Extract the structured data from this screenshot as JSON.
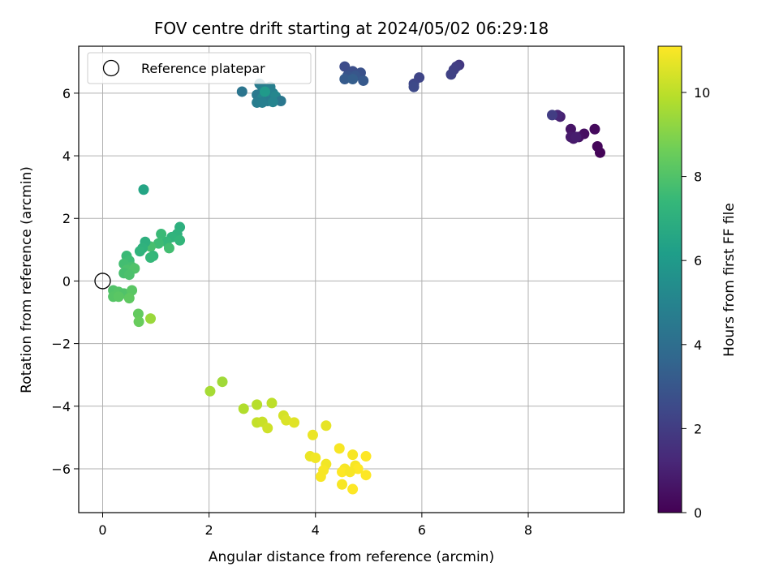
{
  "chart_data": {
    "type": "scatter",
    "title": "FOV centre drift starting at 2024/05/02 06:29:18",
    "xlabel": "Angular distance from reference (arcmin)",
    "ylabel": "Rotation from reference (arcmin)",
    "xlim": [
      -0.45,
      9.8
    ],
    "ylim": [
      -7.4,
      7.5
    ],
    "xticks": [
      0,
      2,
      4,
      6,
      8
    ],
    "yticks": [
      -6,
      -4,
      -2,
      0,
      2,
      4,
      6
    ],
    "grid": true,
    "legend": {
      "position": "top-left",
      "entries": [
        {
          "label": "Reference platepar",
          "marker": "open-circle"
        }
      ]
    },
    "reference_point": {
      "x": 0,
      "y": 0
    },
    "colorbar": {
      "label": "Hours from first FF file",
      "range": [
        0,
        11.1
      ],
      "ticks": [
        0,
        2,
        4,
        6,
        8,
        10
      ],
      "colormap": "viridis",
      "colors": [
        "#440154",
        "#482878",
        "#3e4989",
        "#31688e",
        "#26828e",
        "#1f9e89",
        "#35b779",
        "#6ece58",
        "#b5de2b",
        "#fde725"
      ]
    },
    "points": [
      {
        "x": 9.35,
        "y": 4.1,
        "h": 0.1
      },
      {
        "x": 9.3,
        "y": 4.3,
        "h": 0.2
      },
      {
        "x": 9.25,
        "y": 4.85,
        "h": 0.3
      },
      {
        "x": 9.05,
        "y": 4.7,
        "h": 0.4
      },
      {
        "x": 8.95,
        "y": 4.6,
        "h": 0.5
      },
      {
        "x": 8.8,
        "y": 4.85,
        "h": 0.6
      },
      {
        "x": 8.85,
        "y": 4.55,
        "h": 0.7
      },
      {
        "x": 8.8,
        "y": 4.6,
        "h": 0.8
      },
      {
        "x": 8.9,
        "y": 4.6,
        "h": 0.9
      },
      {
        "x": 8.6,
        "y": 5.25,
        "h": 1.0
      },
      {
        "x": 8.55,
        "y": 5.3,
        "h": 1.2
      },
      {
        "x": 8.45,
        "y": 5.3,
        "h": 2.0
      },
      {
        "x": 6.7,
        "y": 6.9,
        "h": 1.8
      },
      {
        "x": 6.65,
        "y": 6.85,
        "h": 2.0
      },
      {
        "x": 6.6,
        "y": 6.75,
        "h": 2.1
      },
      {
        "x": 6.55,
        "y": 6.6,
        "h": 2.2
      },
      {
        "x": 5.95,
        "y": 6.5,
        "h": 2.3
      },
      {
        "x": 5.85,
        "y": 6.3,
        "h": 2.4
      },
      {
        "x": 5.85,
        "y": 6.2,
        "h": 2.5
      },
      {
        "x": 4.55,
        "y": 6.85,
        "h": 2.6
      },
      {
        "x": 4.7,
        "y": 6.7,
        "h": 2.7
      },
      {
        "x": 4.85,
        "y": 6.65,
        "h": 2.8
      },
      {
        "x": 4.6,
        "y": 6.55,
        "h": 2.9
      },
      {
        "x": 4.75,
        "y": 6.55,
        "h": 3.0
      },
      {
        "x": 4.9,
        "y": 6.4,
        "h": 3.1
      },
      {
        "x": 4.55,
        "y": 6.45,
        "h": 3.2
      },
      {
        "x": 4.7,
        "y": 6.45,
        "h": 3.3
      },
      {
        "x": 2.62,
        "y": 6.05,
        "h": 4.3
      },
      {
        "x": 2.9,
        "y": 5.95,
        "h": 4.5
      },
      {
        "x": 2.95,
        "y": 6.3,
        "h": 4.6
      },
      {
        "x": 3.0,
        "y": 6.2,
        "h": 4.7
      },
      {
        "x": 3.15,
        "y": 6.2,
        "h": 4.8
      },
      {
        "x": 3.2,
        "y": 6.0,
        "h": 4.9
      },
      {
        "x": 3.0,
        "y": 5.85,
        "h": 5.0
      },
      {
        "x": 3.25,
        "y": 5.9,
        "h": 5.1
      },
      {
        "x": 3.35,
        "y": 5.75,
        "h": 4.4
      },
      {
        "x": 3.1,
        "y": 5.75,
        "h": 4.6
      },
      {
        "x": 2.9,
        "y": 5.7,
        "h": 4.7
      },
      {
        "x": 3.0,
        "y": 5.7,
        "h": 4.8
      },
      {
        "x": 3.2,
        "y": 5.72,
        "h": 5.0
      },
      {
        "x": 3.05,
        "y": 6.05,
        "h": 6.0
      },
      {
        "x": 0.77,
        "y": 2.92,
        "h": 6.5
      },
      {
        "x": 1.45,
        "y": 1.72,
        "h": 7.0
      },
      {
        "x": 1.4,
        "y": 1.5,
        "h": 7.1
      },
      {
        "x": 1.3,
        "y": 1.4,
        "h": 7.2
      },
      {
        "x": 1.45,
        "y": 1.3,
        "h": 7.3
      },
      {
        "x": 1.2,
        "y": 1.25,
        "h": 7.4
      },
      {
        "x": 1.1,
        "y": 1.5,
        "h": 7.5
      },
      {
        "x": 1.05,
        "y": 1.2,
        "h": 7.6
      },
      {
        "x": 1.25,
        "y": 1.05,
        "h": 7.7
      },
      {
        "x": 0.9,
        "y": 1.1,
        "h": 7.8
      },
      {
        "x": 0.8,
        "y": 1.25,
        "h": 7.0
      },
      {
        "x": 0.75,
        "y": 1.05,
        "h": 7.1
      },
      {
        "x": 0.7,
        "y": 0.95,
        "h": 7.2
      },
      {
        "x": 0.95,
        "y": 0.8,
        "h": 7.3
      },
      {
        "x": 0.9,
        "y": 0.75,
        "h": 7.4
      },
      {
        "x": 0.45,
        "y": 0.8,
        "h": 7.5
      },
      {
        "x": 0.5,
        "y": 0.65,
        "h": 7.6
      },
      {
        "x": 0.4,
        "y": 0.55,
        "h": 7.7
      },
      {
        "x": 0.55,
        "y": 0.45,
        "h": 7.8
      },
      {
        "x": 0.45,
        "y": 0.35,
        "h": 7.9
      },
      {
        "x": 0.6,
        "y": 0.4,
        "h": 8.0
      },
      {
        "x": 0.4,
        "y": 0.25,
        "h": 7.8
      },
      {
        "x": 0.5,
        "y": 0.2,
        "h": 7.9
      },
      {
        "x": 0.2,
        "y": -0.3,
        "h": 8.0
      },
      {
        "x": 0.3,
        "y": -0.35,
        "h": 8.1
      },
      {
        "x": 0.4,
        "y": -0.4,
        "h": 8.0
      },
      {
        "x": 0.55,
        "y": -0.3,
        "h": 8.2
      },
      {
        "x": 0.2,
        "y": -0.5,
        "h": 8.1
      },
      {
        "x": 0.3,
        "y": -0.5,
        "h": 8.2
      },
      {
        "x": 0.5,
        "y": -0.55,
        "h": 8.3
      },
      {
        "x": 0.67,
        "y": -1.05,
        "h": 8.4
      },
      {
        "x": 0.68,
        "y": -1.3,
        "h": 8.5
      },
      {
        "x": 0.9,
        "y": -1.2,
        "h": 9.4
      },
      {
        "x": 2.25,
        "y": -3.22,
        "h": 9.5
      },
      {
        "x": 2.02,
        "y": -3.52,
        "h": 9.6
      },
      {
        "x": 2.65,
        "y": -4.08,
        "h": 9.8
      },
      {
        "x": 2.9,
        "y": -3.95,
        "h": 9.9
      },
      {
        "x": 3.18,
        "y": -3.9,
        "h": 10.0
      },
      {
        "x": 2.9,
        "y": -4.52,
        "h": 10.1
      },
      {
        "x": 3.0,
        "y": -4.5,
        "h": 10.2
      },
      {
        "x": 3.1,
        "y": -4.7,
        "h": 10.3
      },
      {
        "x": 3.4,
        "y": -4.3,
        "h": 10.4
      },
      {
        "x": 3.45,
        "y": -4.45,
        "h": 10.5
      },
      {
        "x": 3.6,
        "y": -4.52,
        "h": 10.6
      },
      {
        "x": 4.2,
        "y": -4.62,
        "h": 10.7
      },
      {
        "x": 3.95,
        "y": -4.92,
        "h": 10.8
      },
      {
        "x": 3.9,
        "y": -5.6,
        "h": 10.8
      },
      {
        "x": 4.0,
        "y": -5.65,
        "h": 10.9
      },
      {
        "x": 4.2,
        "y": -5.85,
        "h": 10.9
      },
      {
        "x": 4.15,
        "y": -6.05,
        "h": 11.0
      },
      {
        "x": 4.1,
        "y": -6.25,
        "h": 11.0
      },
      {
        "x": 4.45,
        "y": -5.35,
        "h": 11.0
      },
      {
        "x": 4.7,
        "y": -5.55,
        "h": 11.0
      },
      {
        "x": 4.95,
        "y": -5.6,
        "h": 11.1
      },
      {
        "x": 4.55,
        "y": -6.0,
        "h": 11.0
      },
      {
        "x": 4.75,
        "y": -5.9,
        "h": 11.0
      },
      {
        "x": 4.8,
        "y": -6.0,
        "h": 11.1
      },
      {
        "x": 4.5,
        "y": -6.1,
        "h": 11.1
      },
      {
        "x": 4.65,
        "y": -6.1,
        "h": 11.0
      },
      {
        "x": 4.95,
        "y": -6.2,
        "h": 11.1
      },
      {
        "x": 4.5,
        "y": -6.5,
        "h": 11.0
      },
      {
        "x": 4.7,
        "y": -6.65,
        "h": 11.1
      }
    ]
  }
}
